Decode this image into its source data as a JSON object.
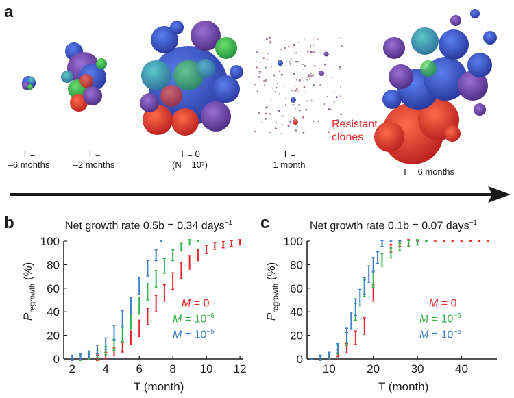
{
  "panel_a": {
    "letter": "a",
    "stages": [
      {
        "line1": "T =",
        "line2": "–6 months"
      },
      {
        "line1": "T =",
        "line2": "–2 months"
      },
      {
        "line1": "T = 0",
        "line2": "(N = 10⁷)"
      },
      {
        "line1": "T =",
        "line2": "1 month"
      },
      {
        "line1": "T = 6 months",
        "line2": ""
      }
    ],
    "annotation_line1": "Resistant",
    "annotation_line2": "clones",
    "colors": {
      "red": "#d42a2a",
      "green": "#2fb34a",
      "blue": "#2f4fbf",
      "purple": "#6b3fa0",
      "arrow": "#1a1a1a"
    }
  },
  "panel_b": {
    "letter": "b",
    "title": "Net growth rate 0.5b = 0.34 days",
    "title_exp": "−1",
    "xlabel": "T (month)",
    "ylabel_main": "P",
    "ylabel_sub": "regrowth",
    "ylabel_unit": "(%)"
  },
  "panel_c": {
    "letter": "c",
    "title": "Net growth rate 0.1b = 0.07 days",
    "title_exp": "−1",
    "xlabel": "T (month)",
    "ylabel_main": "P",
    "ylabel_sub": "regrowth",
    "ylabel_unit": "(%)"
  },
  "legend": [
    {
      "label": "M = 0",
      "mantissa": "M = 0",
      "exp": "",
      "color": "#e8262b"
    },
    {
      "label": "M = 10−6",
      "mantissa": "M = 10",
      "exp": "−6",
      "color": "#2fb34a"
    },
    {
      "label": "M = 10−5",
      "mantissa": "M = 10",
      "exp": "−5",
      "color": "#3a7fcc"
    }
  ],
  "chart_data": [
    {
      "type": "scatter",
      "title": "Net growth rate 0.5b = 0.34 days−1",
      "xlabel": "T (month)",
      "ylabel": "P_regrowth (%)",
      "xlim": [
        1.5,
        12.2
      ],
      "ylim": [
        0,
        100
      ],
      "xticks": [
        2,
        4,
        6,
        8,
        10,
        12
      ],
      "yticks": [
        0,
        20,
        40,
        60,
        80,
        100
      ],
      "series": [
        {
          "name": "M = 0",
          "color": "#e8262b",
          "x": [
            2.0,
            2.5,
            3.0,
            3.5,
            4.0,
            4.5,
            5.0,
            5.5,
            6.0,
            6.5,
            7.0,
            7.5,
            8.0,
            8.5,
            9.0,
            9.5,
            10.0,
            10.5,
            11.0,
            11.5,
            12.0
          ],
          "y": [
            0,
            0,
            0,
            1,
            3,
            6,
            10,
            18,
            26,
            36,
            47,
            56,
            66,
            75,
            82,
            88,
            93,
            96,
            97,
            98,
            99
          ]
        },
        {
          "name": "M = 10−6",
          "color": "#2fb34a",
          "x": [
            2.0,
            2.5,
            3.0,
            3.5,
            4.0,
            4.5,
            5.0,
            5.5,
            6.0,
            6.5,
            7.0,
            7.5,
            8.0,
            8.5,
            9.0,
            9.5
          ],
          "y": [
            0,
            1,
            2,
            4,
            7,
            12,
            21,
            32,
            45,
            57,
            68,
            79,
            88,
            95,
            99,
            100
          ]
        },
        {
          "name": "M = 10−5",
          "color": "#3a7fcc",
          "x": [
            2.0,
            2.5,
            3.0,
            3.5,
            4.0,
            4.5,
            5.0,
            5.5,
            6.0,
            6.5,
            7.0,
            7.3
          ],
          "y": [
            1,
            2,
            4,
            8,
            13,
            22,
            34,
            45,
            62,
            77,
            88,
            100
          ]
        }
      ]
    },
    {
      "type": "scatter",
      "title": "Net growth rate 0.1b = 0.07 days−1",
      "xlabel": "T (month)",
      "ylabel": "P_regrowth (%)",
      "xlim": [
        5,
        48
      ],
      "ylim": [
        0,
        100
      ],
      "xticks": [
        10,
        20,
        30,
        40
      ],
      "yticks": [
        0,
        20,
        40,
        60,
        80,
        100
      ],
      "series": [
        {
          "name": "M = 0",
          "color": "#e8262b",
          "x": [
            6,
            8,
            10,
            12,
            14,
            16,
            18,
            20,
            22,
            24,
            26,
            28,
            30,
            32,
            34,
            36,
            38,
            40,
            42,
            44,
            46
          ],
          "y": [
            0,
            1,
            3,
            5,
            9,
            18,
            28,
            56,
            84,
            94,
            98,
            99,
            100,
            100,
            100,
            100,
            100,
            100,
            100,
            100,
            100
          ]
        },
        {
          "name": "M = 10−6",
          "color": "#2fb34a",
          "x": [
            6,
            8,
            10,
            12,
            14,
            16,
            18,
            20,
            22,
            24,
            26,
            28,
            30,
            32
          ],
          "y": [
            0,
            1,
            3,
            8,
            17,
            40,
            60,
            68,
            84,
            90,
            95,
            98,
            99,
            100
          ]
        },
        {
          "name": "M = 10−5",
          "color": "#3a7fcc",
          "x": [
            6,
            8,
            10,
            12,
            14,
            15,
            16,
            17,
            18,
            19,
            20,
            21,
            22,
            24,
            26
          ],
          "y": [
            0,
            1,
            3,
            9,
            20,
            32,
            44,
            52,
            62,
            72,
            80,
            86,
            98,
            100,
            100
          ]
        }
      ]
    }
  ]
}
